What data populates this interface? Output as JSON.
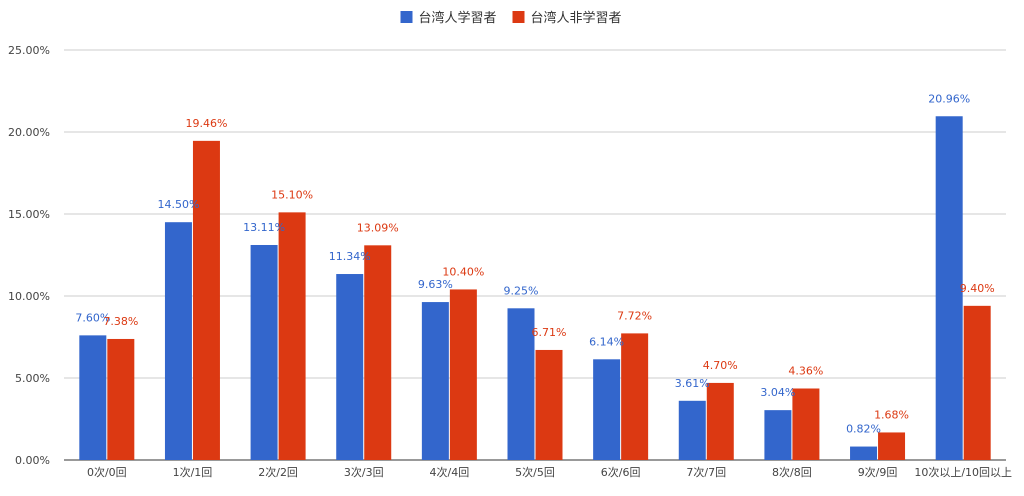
{
  "chart_data": {
    "type": "bar",
    "title": "",
    "xlabel": "",
    "ylabel": "",
    "ylim": [
      0,
      25
    ],
    "yticks": [
      "0.00%",
      "5.00%",
      "10.00%",
      "15.00%",
      "20.00%",
      "25.00%"
    ],
    "grid": true,
    "legend_position": "top-center",
    "categories": [
      "0次/0回",
      "1次/1回",
      "2次/2回",
      "3次/3回",
      "4次/4回",
      "5次/5回",
      "6次/6回",
      "7次/7回",
      "8次/8回",
      "9次/9回",
      "10次以上/10回以上"
    ],
    "series": [
      {
        "name": "台湾人学習者",
        "color": "#3366cc",
        "values": [
          7.6,
          14.5,
          13.11,
          11.34,
          9.63,
          9.25,
          6.14,
          3.61,
          3.04,
          0.82,
          20.96
        ],
        "labels": [
          "7.60%",
          "14.50%",
          "13.11%",
          "11.34%",
          "9.63%",
          "9.25%",
          "6.14%",
          "3.61%",
          "3.04%",
          "0.82%",
          "20.96%"
        ]
      },
      {
        "name": "台湾人非学習者",
        "color": "#dc3912",
        "values": [
          7.38,
          19.46,
          15.1,
          13.09,
          10.4,
          6.71,
          7.72,
          4.7,
          4.36,
          1.68,
          9.4
        ],
        "labels": [
          "7.38%",
          "19.46%",
          "15.10%",
          "13.09%",
          "10.40%",
          "6.71%",
          "7.72%",
          "4.70%",
          "4.36%",
          "1.68%",
          "9.40%"
        ]
      }
    ]
  }
}
